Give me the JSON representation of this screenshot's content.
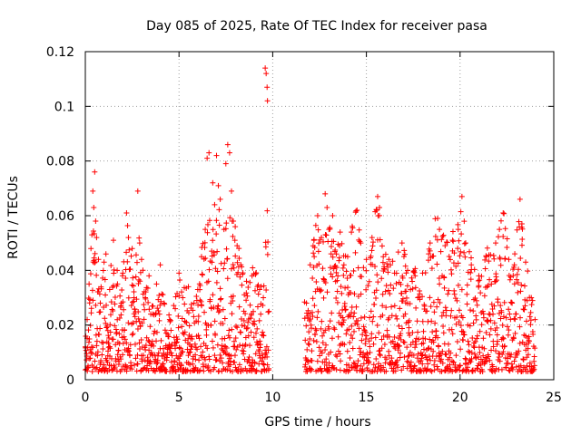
{
  "chart_data": {
    "type": "scatter",
    "title": "Day 085 of 2025, Rate Of TEC Index for receiver pasa",
    "xlabel": "GPS time / hours",
    "ylabel": "ROTI / TECUs",
    "xlim": [
      0,
      25
    ],
    "ylim": [
      0,
      0.12
    ],
    "xticks": [
      0,
      5,
      10,
      15,
      20,
      25
    ],
    "xtick_labels": [
      "0",
      "5",
      "10",
      "15",
      "20",
      "25"
    ],
    "yticks": [
      0,
      0.02,
      0.04,
      0.06,
      0.08,
      0.1,
      0.12
    ],
    "ytick_labels": [
      "0",
      "0.02",
      "0.04",
      "0.06",
      "0.08",
      "0.1",
      "0.12"
    ],
    "grid": true,
    "marker": "+",
    "color": "#ff0000",
    "data_gap_hours": [
      9.8,
      11.7
    ],
    "series": [
      {
        "name": "ROTI",
        "points": [
          [
            0.0,
            0.012
          ],
          [
            0.1,
            0.022
          ],
          [
            0.2,
            0.035
          ],
          [
            0.3,
            0.048
          ],
          [
            0.35,
            0.053
          ],
          [
            0.4,
            0.069
          ],
          [
            0.45,
            0.063
          ],
          [
            0.5,
            0.076
          ],
          [
            0.55,
            0.058
          ],
          [
            0.6,
            0.052
          ],
          [
            0.7,
            0.044
          ],
          [
            0.8,
            0.028
          ],
          [
            1.0,
            0.043
          ],
          [
            1.1,
            0.046
          ],
          [
            1.2,
            0.018
          ],
          [
            1.3,
            0.033
          ],
          [
            1.5,
            0.051
          ],
          [
            1.7,
            0.04
          ],
          [
            1.9,
            0.027
          ],
          [
            2.0,
            0.039
          ],
          [
            2.2,
            0.061
          ],
          [
            2.3,
            0.052
          ],
          [
            2.5,
            0.048
          ],
          [
            2.6,
            0.03
          ],
          [
            2.8,
            0.069
          ],
          [
            2.9,
            0.05
          ],
          [
            3.0,
            0.044
          ],
          [
            3.2,
            0.03
          ],
          [
            3.4,
            0.038
          ],
          [
            3.6,
            0.024
          ],
          [
            3.8,
            0.035
          ],
          [
            4.0,
            0.042
          ],
          [
            4.2,
            0.028
          ],
          [
            4.5,
            0.022
          ],
          [
            4.8,
            0.026
          ],
          [
            5.0,
            0.039
          ],
          [
            5.2,
            0.03
          ],
          [
            5.5,
            0.034
          ],
          [
            5.8,
            0.028
          ],
          [
            6.0,
            0.033
          ],
          [
            6.2,
            0.045
          ],
          [
            6.4,
            0.055
          ],
          [
            6.5,
            0.081
          ],
          [
            6.6,
            0.083
          ],
          [
            6.8,
            0.072
          ],
          [
            6.9,
            0.064
          ],
          [
            7.0,
            0.082
          ],
          [
            7.1,
            0.071
          ],
          [
            7.2,
            0.066
          ],
          [
            7.4,
            0.055
          ],
          [
            7.5,
            0.079
          ],
          [
            7.6,
            0.086
          ],
          [
            7.7,
            0.083
          ],
          [
            7.8,
            0.069
          ],
          [
            7.9,
            0.058
          ],
          [
            8.0,
            0.056
          ],
          [
            8.1,
            0.049
          ],
          [
            8.3,
            0.042
          ],
          [
            8.6,
            0.036
          ],
          [
            8.9,
            0.038
          ],
          [
            9.1,
            0.039
          ],
          [
            9.3,
            0.033
          ],
          [
            9.5,
            0.03
          ],
          [
            9.6,
            0.114
          ],
          [
            9.65,
            0.112
          ],
          [
            9.7,
            0.107
          ],
          [
            9.72,
            0.102
          ],
          [
            9.8,
            0.025
          ],
          [
            11.8,
            0.028
          ],
          [
            12.0,
            0.042
          ],
          [
            12.2,
            0.051
          ],
          [
            12.4,
            0.06
          ],
          [
            12.6,
            0.052
          ],
          [
            12.8,
            0.068
          ],
          [
            12.9,
            0.063
          ],
          [
            13.0,
            0.055
          ],
          [
            13.2,
            0.06
          ],
          [
            13.4,
            0.046
          ],
          [
            13.6,
            0.054
          ],
          [
            13.8,
            0.042
          ],
          [
            14.0,
            0.045
          ],
          [
            14.2,
            0.054
          ],
          [
            14.5,
            0.062
          ],
          [
            14.7,
            0.05
          ],
          [
            15.0,
            0.044
          ],
          [
            15.3,
            0.052
          ],
          [
            15.6,
            0.067
          ],
          [
            15.7,
            0.063
          ],
          [
            15.9,
            0.045
          ],
          [
            16.2,
            0.044
          ],
          [
            16.5,
            0.039
          ],
          [
            16.9,
            0.05
          ],
          [
            17.2,
            0.04
          ],
          [
            17.6,
            0.038
          ],
          [
            18.0,
            0.039
          ],
          [
            18.4,
            0.05
          ],
          [
            18.8,
            0.059
          ],
          [
            18.9,
            0.055
          ],
          [
            19.2,
            0.049
          ],
          [
            19.6,
            0.051
          ],
          [
            19.9,
            0.055
          ],
          [
            20.1,
            0.067
          ],
          [
            20.3,
            0.05
          ],
          [
            20.6,
            0.042
          ],
          [
            21.0,
            0.038
          ],
          [
            21.4,
            0.045
          ],
          [
            21.9,
            0.05
          ],
          [
            22.1,
            0.055
          ],
          [
            22.3,
            0.061
          ],
          [
            22.6,
            0.044
          ],
          [
            22.9,
            0.042
          ],
          [
            23.2,
            0.066
          ],
          [
            23.3,
            0.057
          ],
          [
            23.5,
            0.043
          ],
          [
            23.8,
            0.03
          ],
          [
            24.0,
            0.022
          ]
        ]
      }
    ]
  }
}
